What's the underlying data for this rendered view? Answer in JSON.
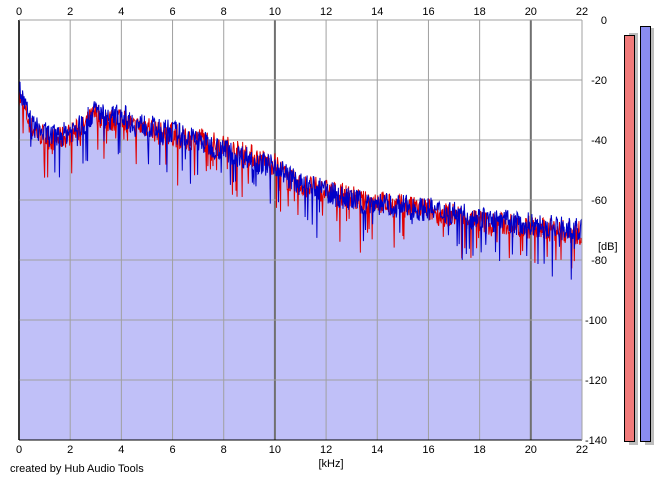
{
  "footer": {
    "credit": "created by Hub Audio Tools"
  },
  "chart_data": {
    "type": "area",
    "xlabel": "[kHz]",
    "ylabel": "[dB]",
    "xlim": [
      0,
      22
    ],
    "ylim": [
      -140,
      0
    ],
    "x_ticks": [
      0,
      2,
      4,
      6,
      8,
      10,
      12,
      14,
      16,
      18,
      20,
      22
    ],
    "y_ticks": [
      0,
      -20,
      -40,
      -60,
      -80,
      -100,
      -120,
      -140
    ],
    "grid": true,
    "x_axis_labels": "top and bottom",
    "y_axis_labels": "right",
    "colors": {
      "fill": "#c0c0f8",
      "left_channel": "#e00000",
      "right_channel": "#0000c8",
      "grid": "#a0a0a0"
    },
    "series": [
      {
        "color": "red",
        "x": [
          0,
          0.5,
          1,
          1.5,
          2,
          2.5,
          3,
          3.5,
          4,
          4.5,
          5,
          5.5,
          6,
          6.5,
          7,
          7.5,
          8,
          8.5,
          9,
          9.5,
          10,
          10.5,
          11,
          11.5,
          12,
          12.5,
          13,
          13.5,
          14,
          14.5,
          15,
          15.5,
          16,
          16.5,
          17,
          17.5,
          18,
          18.5,
          19,
          19.5,
          20,
          20.5,
          21,
          21.5,
          22
        ],
        "values": [
          -25,
          -36,
          -39,
          -40,
          -38,
          -36,
          -31,
          -34,
          -32,
          -36,
          -35,
          -38,
          -38,
          -40,
          -39,
          -41,
          -42,
          -44,
          -45,
          -47,
          -48,
          -53,
          -55,
          -56,
          -57,
          -58,
          -59,
          -61,
          -60,
          -62,
          -62,
          -63,
          -63,
          -65,
          -65,
          -66,
          -67,
          -68,
          -68,
          -69,
          -69,
          -70,
          -70,
          -71,
          -71
        ]
      },
      {
        "color": "blue",
        "x": [
          0,
          0.5,
          1,
          1.5,
          2,
          2.5,
          3,
          3.5,
          4,
          4.5,
          5,
          5.5,
          6,
          6.5,
          7,
          7.5,
          8,
          8.5,
          9,
          9.5,
          10,
          10.5,
          11,
          11.5,
          12,
          12.5,
          13,
          13.5,
          14,
          14.5,
          15,
          15.5,
          16,
          16.5,
          17,
          17.5,
          18,
          18.5,
          19,
          19.5,
          20,
          20.5,
          21,
          21.5,
          22
        ],
        "values": [
          -23,
          -35,
          -38,
          -39,
          -37,
          -35,
          -30,
          -33,
          -31,
          -35,
          -35,
          -37,
          -37,
          -39,
          -40,
          -42,
          -43,
          -45,
          -46,
          -48,
          -48,
          -52,
          -55,
          -56,
          -57,
          -59,
          -60,
          -61,
          -61,
          -62,
          -62,
          -63,
          -63,
          -64,
          -64,
          -65,
          -66,
          -67,
          -67,
          -68,
          -68,
          -69,
          -69,
          -70,
          -70
        ]
      }
    ],
    "level_meters": {
      "left": -5,
      "right": -2
    }
  }
}
